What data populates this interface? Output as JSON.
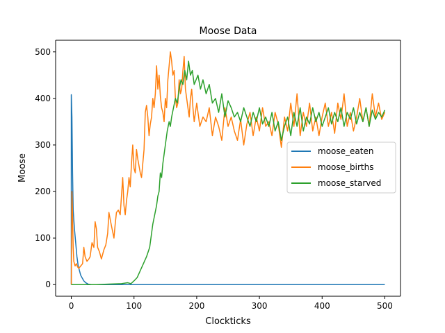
{
  "chart_data": {
    "type": "line",
    "title": "Moose Data",
    "xlabel": "Clockticks",
    "ylabel": "Moose",
    "xlim": [
      -25,
      525
    ],
    "ylim": [
      -25,
      525
    ],
    "xticks": [
      0,
      100,
      200,
      300,
      400,
      500
    ],
    "yticks": [
      0,
      100,
      200,
      300,
      400,
      500
    ],
    "grid": false,
    "legend_position": "center-right",
    "series": [
      {
        "name": "moose_eaten",
        "color": "#1f77b4",
        "points": [
          [
            0,
            0
          ],
          [
            0,
            408
          ],
          [
            1,
            360
          ],
          [
            2,
            240
          ],
          [
            3,
            160
          ],
          [
            5,
            120
          ],
          [
            7,
            90
          ],
          [
            9,
            60
          ],
          [
            11,
            40
          ],
          [
            13,
            30
          ],
          [
            15,
            20
          ],
          [
            17,
            15
          ],
          [
            20,
            8
          ],
          [
            23,
            4
          ],
          [
            27,
            1
          ],
          [
            32,
            0
          ],
          [
            40,
            0
          ],
          [
            60,
            0
          ],
          [
            100,
            0
          ],
          [
            200,
            0
          ],
          [
            300,
            0
          ],
          [
            400,
            0
          ],
          [
            500,
            0
          ]
        ]
      },
      {
        "name": "moose_births",
        "color": "#ff7f0e",
        "points": [
          [
            0,
            0
          ],
          [
            1,
            200
          ],
          [
            2,
            150
          ],
          [
            3,
            80
          ],
          [
            4,
            50
          ],
          [
            6,
            40
          ],
          [
            8,
            45
          ],
          [
            10,
            38
          ],
          [
            12,
            35
          ],
          [
            15,
            40
          ],
          [
            18,
            45
          ],
          [
            20,
            80
          ],
          [
            22,
            60
          ],
          [
            25,
            50
          ],
          [
            28,
            55
          ],
          [
            30,
            60
          ],
          [
            33,
            90
          ],
          [
            36,
            80
          ],
          [
            38,
            135
          ],
          [
            40,
            120
          ],
          [
            42,
            80
          ],
          [
            45,
            70
          ],
          [
            48,
            55
          ],
          [
            50,
            65
          ],
          [
            52,
            75
          ],
          [
            55,
            85
          ],
          [
            58,
            110
          ],
          [
            60,
            155
          ],
          [
            62,
            140
          ],
          [
            65,
            120
          ],
          [
            68,
            100
          ],
          [
            70,
            130
          ],
          [
            72,
            155
          ],
          [
            75,
            160
          ],
          [
            78,
            150
          ],
          [
            80,
            190
          ],
          [
            82,
            230
          ],
          [
            84,
            170
          ],
          [
            86,
            150
          ],
          [
            88,
            180
          ],
          [
            90,
            200
          ],
          [
            92,
            230
          ],
          [
            94,
            210
          ],
          [
            96,
            260
          ],
          [
            98,
            300
          ],
          [
            100,
            250
          ],
          [
            102,
            240
          ],
          [
            104,
            290
          ],
          [
            106,
            270
          ],
          [
            108,
            255
          ],
          [
            110,
            240
          ],
          [
            112,
            230
          ],
          [
            114,
            260
          ],
          [
            116,
            290
          ],
          [
            118,
            370
          ],
          [
            120,
            385
          ],
          [
            122,
            360
          ],
          [
            124,
            320
          ],
          [
            126,
            345
          ],
          [
            128,
            360
          ],
          [
            130,
            400
          ],
          [
            132,
            380
          ],
          [
            134,
            410
          ],
          [
            136,
            470
          ],
          [
            138,
            420
          ],
          [
            140,
            450
          ],
          [
            142,
            405
          ],
          [
            144,
            380
          ],
          [
            146,
            370
          ],
          [
            148,
            350
          ],
          [
            150,
            400
          ],
          [
            152,
            380
          ],
          [
            154,
            440
          ],
          [
            156,
            470
          ],
          [
            158,
            500
          ],
          [
            160,
            480
          ],
          [
            162,
            450
          ],
          [
            164,
            460
          ],
          [
            166,
            400
          ],
          [
            168,
            380
          ],
          [
            170,
            390
          ],
          [
            172,
            440
          ],
          [
            174,
            410
          ],
          [
            176,
            420
          ],
          [
            178,
            460
          ],
          [
            180,
            490
          ],
          [
            182,
            420
          ],
          [
            184,
            400
          ],
          [
            186,
            380
          ],
          [
            188,
            360
          ],
          [
            190,
            400
          ],
          [
            192,
            420
          ],
          [
            194,
            380
          ],
          [
            196,
            350
          ],
          [
            198,
            370
          ],
          [
            200,
            390
          ],
          [
            205,
            340
          ],
          [
            210,
            360
          ],
          [
            215,
            350
          ],
          [
            220,
            380
          ],
          [
            225,
            320
          ],
          [
            230,
            360
          ],
          [
            235,
            340
          ],
          [
            240,
            310
          ],
          [
            245,
            380
          ],
          [
            250,
            340
          ],
          [
            255,
            360
          ],
          [
            260,
            330
          ],
          [
            265,
            310
          ],
          [
            270,
            355
          ],
          [
            275,
            300
          ],
          [
            280,
            345
          ],
          [
            285,
            370
          ],
          [
            290,
            320
          ],
          [
            295,
            360
          ],
          [
            300,
            330
          ],
          [
            305,
            380
          ],
          [
            310,
            340
          ],
          [
            315,
            350
          ],
          [
            320,
            320
          ],
          [
            325,
            370
          ],
          [
            330,
            345
          ],
          [
            335,
            295
          ],
          [
            340,
            360
          ],
          [
            345,
            330
          ],
          [
            350,
            390
          ],
          [
            355,
            340
          ],
          [
            360,
            410
          ],
          [
            365,
            320
          ],
          [
            370,
            370
          ],
          [
            375,
            340
          ],
          [
            380,
            390
          ],
          [
            385,
            330
          ],
          [
            390,
            360
          ],
          [
            395,
            320
          ],
          [
            400,
            360
          ],
          [
            405,
            390
          ],
          [
            410,
            340
          ],
          [
            415,
            370
          ],
          [
            420,
            325
          ],
          [
            425,
            390
          ],
          [
            430,
            355
          ],
          [
            435,
            410
          ],
          [
            440,
            340
          ],
          [
            445,
            370
          ],
          [
            450,
            330
          ],
          [
            455,
            360
          ],
          [
            460,
            400
          ],
          [
            465,
            350
          ],
          [
            470,
            380
          ],
          [
            475,
            340
          ],
          [
            480,
            410
          ],
          [
            485,
            360
          ],
          [
            490,
            390
          ],
          [
            495,
            355
          ],
          [
            500,
            370
          ]
        ]
      },
      {
        "name": "moose_starved",
        "color": "#2ca02c",
        "points": [
          [
            0,
            0
          ],
          [
            20,
            0
          ],
          [
            40,
            0
          ],
          [
            60,
            1
          ],
          [
            80,
            2
          ],
          [
            90,
            4
          ],
          [
            95,
            2
          ],
          [
            100,
            8
          ],
          [
            105,
            15
          ],
          [
            110,
            30
          ],
          [
            115,
            45
          ],
          [
            120,
            60
          ],
          [
            125,
            80
          ],
          [
            128,
            110
          ],
          [
            130,
            130
          ],
          [
            133,
            150
          ],
          [
            136,
            170
          ],
          [
            138,
            190
          ],
          [
            140,
            200
          ],
          [
            142,
            240
          ],
          [
            144,
            230
          ],
          [
            146,
            260
          ],
          [
            148,
            280
          ],
          [
            150,
            300
          ],
          [
            153,
            330
          ],
          [
            156,
            350
          ],
          [
            158,
            340
          ],
          [
            160,
            360
          ],
          [
            163,
            380
          ],
          [
            166,
            400
          ],
          [
            169,
            390
          ],
          [
            172,
            420
          ],
          [
            175,
            440
          ],
          [
            178,
            430
          ],
          [
            181,
            460
          ],
          [
            184,
            440
          ],
          [
            187,
            480
          ],
          [
            190,
            450
          ],
          [
            193,
            460
          ],
          [
            196,
            430
          ],
          [
            199,
            440
          ],
          [
            202,
            450
          ],
          [
            206,
            420
          ],
          [
            210,
            440
          ],
          [
            215,
            410
          ],
          [
            220,
            430
          ],
          [
            225,
            390
          ],
          [
            230,
            400
          ],
          [
            235,
            370
          ],
          [
            240,
            410
          ],
          [
            245,
            360
          ],
          [
            250,
            395
          ],
          [
            255,
            380
          ],
          [
            260,
            360
          ],
          [
            265,
            370
          ],
          [
            270,
            350
          ],
          [
            275,
            380
          ],
          [
            280,
            360
          ],
          [
            285,
            340
          ],
          [
            290,
            370
          ],
          [
            295,
            350
          ],
          [
            300,
            380
          ],
          [
            305,
            345
          ],
          [
            310,
            360
          ],
          [
            315,
            340
          ],
          [
            320,
            370
          ],
          [
            325,
            330
          ],
          [
            330,
            350
          ],
          [
            335,
            310
          ],
          [
            340,
            340
          ],
          [
            345,
            360
          ],
          [
            350,
            320
          ],
          [
            355,
            370
          ],
          [
            360,
            340
          ],
          [
            365,
            380
          ],
          [
            370,
            330
          ],
          [
            375,
            360
          ],
          [
            380,
            345
          ],
          [
            385,
            380
          ],
          [
            390,
            350
          ],
          [
            395,
            370
          ],
          [
            400,
            340
          ],
          [
            405,
            360
          ],
          [
            410,
            380
          ],
          [
            415,
            345
          ],
          [
            420,
            370
          ],
          [
            425,
            350
          ],
          [
            430,
            380
          ],
          [
            435,
            340
          ],
          [
            440,
            370
          ],
          [
            445,
            355
          ],
          [
            450,
            380
          ],
          [
            455,
            345
          ],
          [
            460,
            370
          ],
          [
            465,
            350
          ],
          [
            470,
            380
          ],
          [
            475,
            340
          ],
          [
            480,
            375
          ],
          [
            485,
            355
          ],
          [
            490,
            370
          ],
          [
            495,
            360
          ],
          [
            500,
            375
          ]
        ]
      }
    ]
  }
}
